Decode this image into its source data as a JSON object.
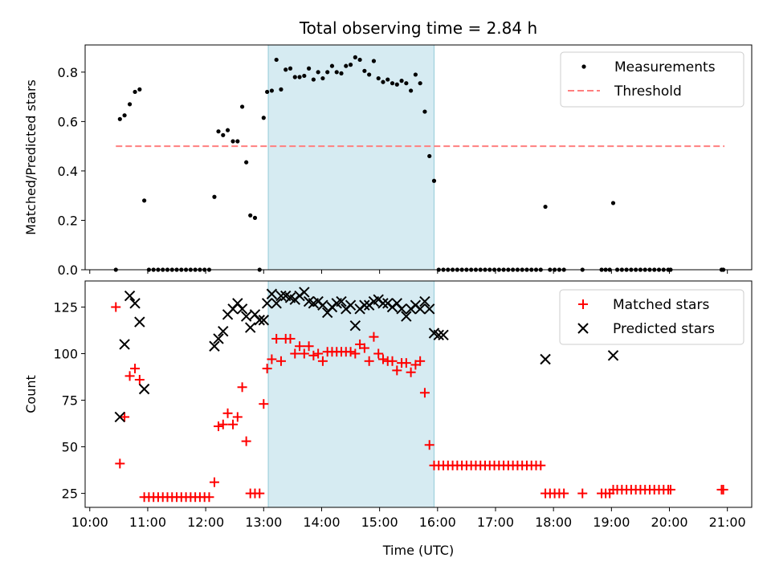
{
  "chart_data": {
    "type": "scatter",
    "title": "Total observing time = 2.84 h",
    "xlabel": "Time (UTC)",
    "x_ticks": [
      "10:00",
      "11:00",
      "12:00",
      "13:00",
      "14:00",
      "15:00",
      "16:00",
      "17:00",
      "18:00",
      "19:00",
      "20:00",
      "21:00"
    ],
    "xlim": [
      9.92,
      21.42
    ],
    "shaded_interval": [
      13.08,
      15.94
    ],
    "shade_color": "#add8e6",
    "panels": [
      {
        "ylabel": "Matched/Predicted stars",
        "ylim": [
          0,
          0.91
        ],
        "y_ticks": [
          0,
          0.2,
          0.4,
          0.6,
          0.8
        ],
        "y_tick_labels": [
          "0.0",
          "0.2",
          "0.4",
          "0.6",
          "0.8"
        ],
        "legend_position": "top-right",
        "threshold": {
          "name": "Threshold",
          "value": 0.5,
          "x_range": [
            10.45,
            20.95
          ],
          "color": "#ff7f7f"
        },
        "series": [
          {
            "name": "Measurements",
            "marker": "dot",
            "color": "#000000",
            "x": [
              10.45,
              10.52,
              10.6,
              10.69,
              10.78,
              10.86,
              10.94,
              11.02,
              11.1,
              11.18,
              11.26,
              11.34,
              11.42,
              11.5,
              11.58,
              11.66,
              11.74,
              11.82,
              11.9,
              11.98,
              12.06,
              12.15,
              12.22,
              12.3,
              12.38,
              12.47,
              12.55,
              12.63,
              12.7,
              12.77,
              12.85,
              12.93,
              13.0,
              13.06,
              13.14,
              13.22,
              13.3,
              13.38,
              13.46,
              13.54,
              13.62,
              13.7,
              13.78,
              13.86,
              13.94,
              14.02,
              14.1,
              14.18,
              14.26,
              14.34,
              14.42,
              14.5,
              14.58,
              14.66,
              14.74,
              14.82,
              14.9,
              14.98,
              15.06,
              15.14,
              15.22,
              15.3,
              15.38,
              15.46,
              15.54,
              15.62,
              15.7,
              15.78,
              15.86,
              15.94,
              16.02,
              16.1,
              16.18,
              16.26,
              16.34,
              16.42,
              16.5,
              16.58,
              16.66,
              16.74,
              16.82,
              16.9,
              16.98,
              17.06,
              17.14,
              17.22,
              17.3,
              17.38,
              17.46,
              17.54,
              17.62,
              17.7,
              17.78,
              17.86,
              17.94,
              18.02,
              18.1,
              18.18,
              18.5,
              18.83,
              18.9,
              18.97,
              19.03,
              19.1,
              19.18,
              19.26,
              19.34,
              19.42,
              19.5,
              19.58,
              19.66,
              19.74,
              19.82,
              19.9,
              19.98,
              20.02,
              20.9,
              20.93
            ],
            "y": [
              0,
              0.61,
              0.625,
              0.67,
              0.72,
              0.73,
              0.28,
              0,
              0,
              0,
              0,
              0,
              0,
              0,
              0,
              0,
              0,
              0,
              0,
              0,
              0,
              0.295,
              0.56,
              0.545,
              0.565,
              0.52,
              0.52,
              0.66,
              0.435,
              0.22,
              0.21,
              0,
              0.615,
              0.72,
              0.725,
              0.85,
              0.73,
              0.81,
              0.815,
              0.78,
              0.78,
              0.785,
              0.815,
              0.77,
              0.8,
              0.775,
              0.8,
              0.825,
              0.8,
              0.795,
              0.825,
              0.83,
              0.86,
              0.85,
              0.805,
              0.79,
              0.845,
              0.775,
              0.76,
              0.77,
              0.755,
              0.75,
              0.765,
              0.755,
              0.725,
              0.79,
              0.755,
              0.64,
              0.46,
              0.36,
              0,
              0,
              0,
              0,
              0,
              0,
              0,
              0,
              0,
              0,
              0,
              0,
              0,
              0,
              0,
              0,
              0,
              0,
              0,
              0,
              0,
              0,
              0,
              0.255,
              0,
              0,
              0,
              0,
              0,
              0,
              0,
              0,
              0.27,
              0,
              0,
              0,
              0,
              0,
              0,
              0,
              0,
              0,
              0,
              0,
              0,
              0,
              0,
              0
            ]
          }
        ]
      },
      {
        "ylabel": "Count",
        "ylim": [
          17.5,
          139
        ],
        "y_ticks": [
          25,
          50,
          75,
          100,
          125
        ],
        "y_tick_labels": [
          "25",
          "50",
          "75",
          "100",
          "125"
        ],
        "legend_position": "top-right",
        "series": [
          {
            "name": "Matched stars",
            "marker": "plus",
            "color": "#ff0000",
            "x": [
              10.45,
              10.52,
              10.6,
              10.69,
              10.78,
              10.86,
              10.94,
              11.02,
              11.1,
              11.18,
              11.26,
              11.34,
              11.42,
              11.5,
              11.58,
              11.66,
              11.74,
              11.82,
              11.9,
              11.98,
              12.06,
              12.15,
              12.22,
              12.3,
              12.38,
              12.47,
              12.55,
              12.63,
              12.7,
              12.77,
              12.85,
              12.93,
              13.0,
              13.06,
              13.14,
              13.22,
              13.3,
              13.38,
              13.46,
              13.54,
              13.62,
              13.7,
              13.78,
              13.86,
              13.94,
              14.02,
              14.1,
              14.18,
              14.26,
              14.34,
              14.42,
              14.5,
              14.58,
              14.66,
              14.74,
              14.82,
              14.9,
              14.98,
              15.06,
              15.14,
              15.22,
              15.3,
              15.38,
              15.46,
              15.54,
              15.62,
              15.7,
              15.78,
              15.86,
              15.94,
              16.02,
              16.1,
              16.18,
              16.26,
              16.34,
              16.42,
              16.5,
              16.58,
              16.66,
              16.74,
              16.82,
              16.9,
              16.98,
              17.06,
              17.14,
              17.22,
              17.3,
              17.38,
              17.46,
              17.54,
              17.62,
              17.7,
              17.78,
              17.86,
              17.94,
              18.02,
              18.1,
              18.18,
              18.5,
              18.83,
              18.9,
              18.97,
              19.03,
              19.1,
              19.18,
              19.26,
              19.34,
              19.42,
              19.5,
              19.58,
              19.66,
              19.74,
              19.82,
              19.9,
              19.98,
              20.02,
              20.9,
              20.93
            ],
            "y": [
              125,
              41,
              66,
              88,
              92,
              86,
              23,
              23,
              23,
              23,
              23,
              23,
              23,
              23,
              23,
              23,
              23,
              23,
              23,
              23,
              23,
              31,
              61,
              62,
              68,
              62,
              66,
              82,
              53,
              25,
              25,
              25,
              73,
              92,
              97,
              108,
              96,
              108,
              108,
              100,
              104,
              100,
              104,
              99,
              100,
              96,
              101,
              101,
              101,
              101,
              101,
              101,
              100,
              105,
              103,
              96,
              109,
              100,
              97,
              96,
              96,
              91,
              95,
              95,
              90,
              94,
              96,
              79,
              51,
              40,
              40,
              40,
              40,
              40,
              40,
              40,
              40,
              40,
              40,
              40,
              40,
              40,
              40,
              40,
              40,
              40,
              40,
              40,
              40,
              40,
              40,
              40,
              40,
              25,
              25,
              25,
              25,
              25,
              25,
              25,
              25,
              25,
              27,
              27,
              27,
              27,
              27,
              27,
              27,
              27,
              27,
              27,
              27,
              27,
              27,
              27,
              27,
              27
            ]
          },
          {
            "name": "Predicted stars",
            "marker": "x",
            "color": "#000000",
            "x": [
              10.52,
              10.6,
              10.69,
              10.78,
              10.86,
              10.94,
              12.15,
              12.22,
              12.3,
              12.38,
              12.47,
              12.55,
              12.63,
              12.7,
              12.77,
              12.85,
              12.93,
              13.0,
              13.06,
              13.14,
              13.22,
              13.3,
              13.38,
              13.46,
              13.54,
              13.62,
              13.7,
              13.78,
              13.86,
              13.94,
              14.02,
              14.1,
              14.18,
              14.26,
              14.34,
              14.42,
              14.5,
              14.58,
              14.66,
              14.74,
              14.82,
              14.9,
              14.98,
              15.06,
              15.14,
              15.22,
              15.3,
              15.38,
              15.46,
              15.54,
              15.62,
              15.7,
              15.78,
              15.86,
              15.94,
              16.02,
              16.1,
              17.86,
              19.03
            ],
            "y": [
              66,
              105,
              131,
              127,
              117,
              81,
              104,
              108,
              112,
              121,
              124,
              127,
              124,
              120,
              114,
              121,
              118,
              118,
              127,
              132,
              127,
              131,
              131,
              130,
              129,
              131,
              133,
              128,
              127,
              128,
              126,
              122,
              125,
              127,
              128,
              124,
              126,
              115,
              124,
              126,
              126,
              128,
              129,
              127,
              127,
              125,
              127,
              124,
              120,
              124,
              126,
              124,
              128,
              124,
              111,
              110,
              110,
              97,
              99
            ]
          }
        ]
      }
    ]
  }
}
